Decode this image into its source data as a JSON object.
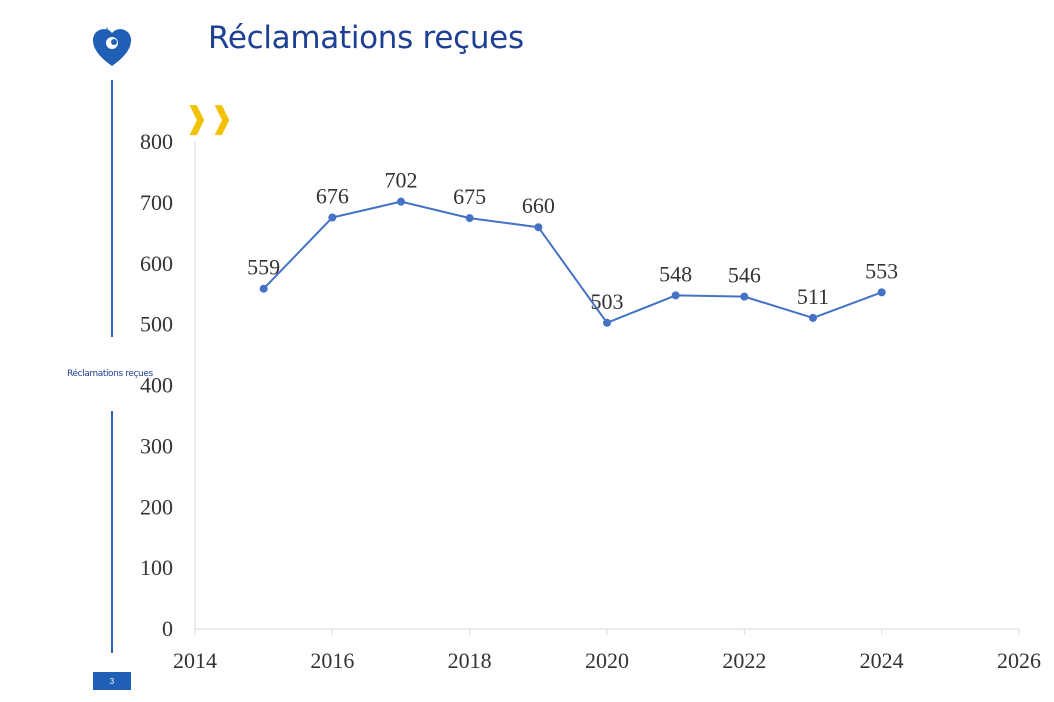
{
  "slide": {
    "title": "Réclamations reçues",
    "side_label": "Réclamations reçues",
    "chevron_glyph": "❱❱",
    "page_number": "3"
  },
  "colors": {
    "accent": "#1f3f93",
    "line": "#4472c4",
    "chevron": "#f2c200"
  },
  "chart_data": {
    "type": "scatter",
    "title": "",
    "xlabel": "",
    "ylabel": "",
    "x": [
      2015,
      2016,
      2017,
      2018,
      2019,
      2020,
      2021,
      2022,
      2023,
      2024
    ],
    "series": [
      {
        "name": "Réclamations reçues",
        "values": [
          559,
          676,
          702,
          675,
          660,
          503,
          548,
          546,
          511,
          553
        ]
      }
    ],
    "xlim": [
      2014,
      2026
    ],
    "ylim": [
      0,
      800
    ],
    "xticks": [
      2014,
      2016,
      2018,
      2020,
      2022,
      2024,
      2026
    ],
    "yticks": [
      0,
      100,
      200,
      300,
      400,
      500,
      600,
      700,
      800
    ],
    "grid": false,
    "data_labels": true
  }
}
